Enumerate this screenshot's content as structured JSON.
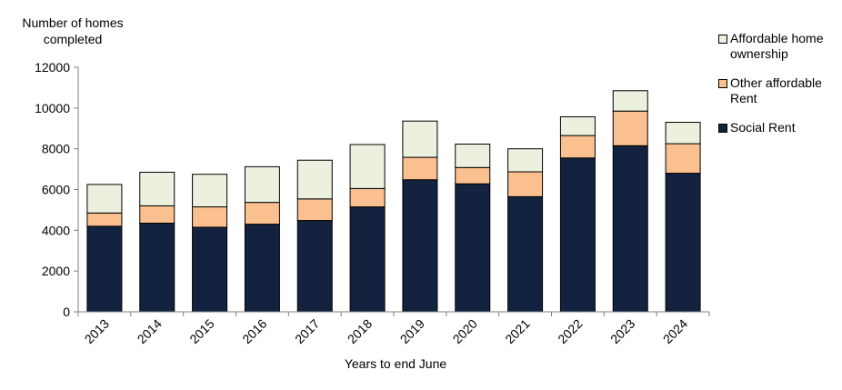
{
  "chart_data": {
    "type": "bar",
    "stacked": true,
    "ylabel": "Number of homes completed",
    "xlabel": "Years to end June",
    "ylim": [
      0,
      12000
    ],
    "yticks": [
      0,
      2000,
      4000,
      6000,
      8000,
      10000,
      12000
    ],
    "categories": [
      "2013",
      "2014",
      "2015",
      "2016",
      "2017",
      "2018",
      "2019",
      "2020",
      "2021",
      "2022",
      "2023",
      "2024"
    ],
    "series": [
      {
        "name": "Social Rent",
        "color": "#13233f",
        "values": [
          4200,
          4350,
          4150,
          4300,
          4480,
          5150,
          6480,
          6280,
          5650,
          7550,
          8150,
          6800
        ]
      },
      {
        "name": "Other affordable Rent",
        "color": "#fac090",
        "values": [
          650,
          850,
          1000,
          1070,
          1060,
          900,
          1100,
          800,
          1220,
          1100,
          1700,
          1450
        ]
      },
      {
        "name": "Affordable home ownership",
        "color": "#ebf1de",
        "values": [
          1400,
          1650,
          1600,
          1750,
          1900,
          2160,
          1780,
          1150,
          1130,
          920,
          1000,
          1050
        ]
      }
    ],
    "legend_position": "right",
    "grid": false
  },
  "legend": [
    {
      "label": "Affordable home ownership",
      "color": "#ebf1de"
    },
    {
      "label": "Other affordable Rent",
      "color": "#fac090"
    },
    {
      "label": "Social Rent",
      "color": "#13233f"
    }
  ]
}
